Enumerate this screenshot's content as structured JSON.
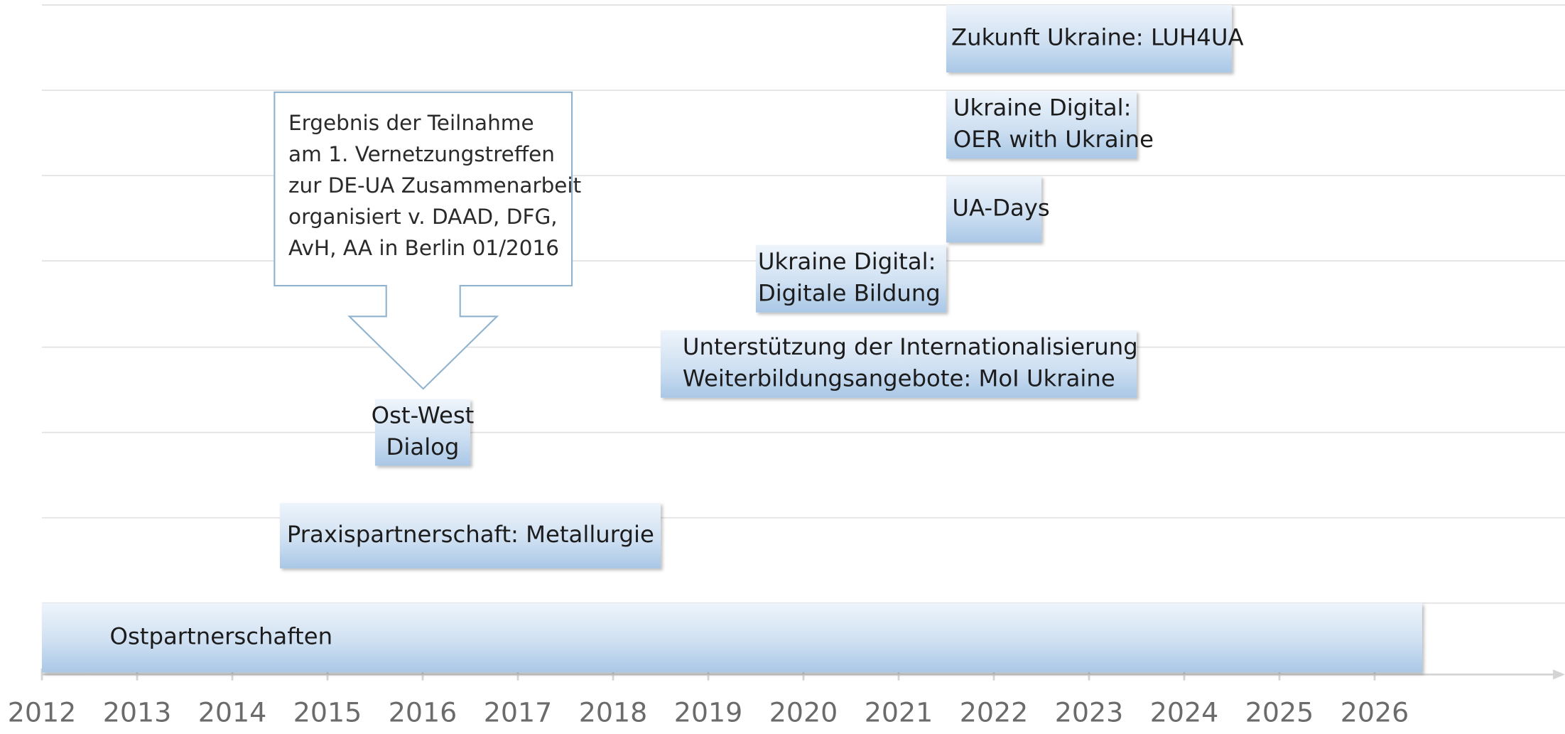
{
  "chart_data": {
    "type": "timeline",
    "tasks": [
      {
        "name": [
          "Ostpartnerschaften"
        ],
        "start": 2012,
        "end": 2026.5
      },
      {
        "name": [
          "Praxispartnerschaft: Metallurgie"
        ],
        "start": 2014.5,
        "end": 2018.5
      },
      {
        "name": [
          "Ost-West",
          "Dialog"
        ],
        "start": 2015.5,
        "end": 2016.5
      },
      {
        "name": [
          "Unterstützung der Internationalisierung",
          "Weiterbildungsangebote: MoI Ukraine"
        ],
        "start": 2018.5,
        "end": 2023.5
      },
      {
        "name": [
          "Ukraine Digital:",
          "Digitale Bildung"
        ],
        "start": 2019.5,
        "end": 2021.5
      },
      {
        "name": [
          "UA-Days"
        ],
        "start": 2021.5,
        "end": 2022.5
      },
      {
        "name": [
          "Ukraine Digital:",
          "OER with Ukraine"
        ],
        "start": 2021.5,
        "end": 2023.5
      },
      {
        "name": [
          "Zukunft Ukraine: LUH4UA"
        ],
        "start": 2021.5,
        "end": 2024.5
      }
    ],
    "annotation": [
      "Ergebnis der Teilnahme",
      "am 1. Vernetzungstreffen",
      "zur DE-UA Zusammenarbeit",
      "organisiert v. DAAD, DFG,",
      "AvH, AA in Berlin 01/2016"
    ],
    "xlim": [
      2012,
      2028
    ],
    "xticks": [
      2012,
      2013,
      2014,
      2015,
      2016,
      2017,
      2018,
      2019,
      2020,
      2021,
      2022,
      2023,
      2024,
      2025,
      2026
    ]
  }
}
